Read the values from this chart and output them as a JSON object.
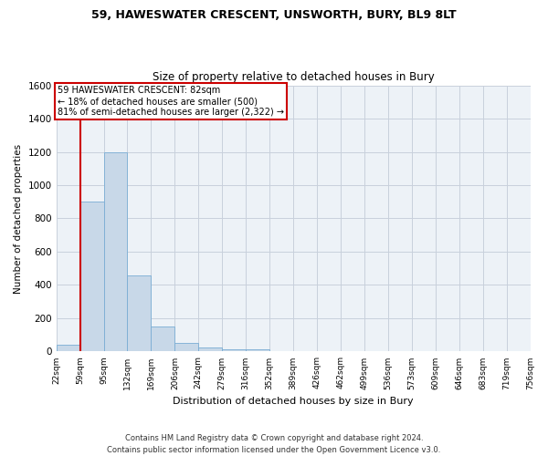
{
  "title1": "59, HAWESWATER CRESCENT, UNSWORTH, BURY, BL9 8LT",
  "title2": "Size of property relative to detached houses in Bury",
  "xlabel": "Distribution of detached houses by size in Bury",
  "ylabel": "Number of detached properties",
  "bins": [
    "22sqm",
    "59sqm",
    "95sqm",
    "132sqm",
    "169sqm",
    "206sqm",
    "242sqm",
    "279sqm",
    "316sqm",
    "352sqm",
    "389sqm",
    "426sqm",
    "462sqm",
    "499sqm",
    "536sqm",
    "573sqm",
    "609sqm",
    "646sqm",
    "683sqm",
    "719sqm",
    "756sqm"
  ],
  "values": [
    40,
    900,
    1200,
    460,
    150,
    50,
    25,
    15,
    15,
    5,
    0,
    0,
    0,
    0,
    0,
    0,
    0,
    0,
    0,
    0
  ],
  "bar_color": "#c8d8e8",
  "bar_edge_color": "#7aadd4",
  "grid_color": "#c8d0dc",
  "bg_color": "#edf2f7",
  "vline_color": "#cc0000",
  "annotation_text": "59 HAWESWATER CRESCENT: 82sqm\n← 18% of detached houses are smaller (500)\n81% of semi-detached houses are larger (2,322) →",
  "annotation_box_color": "#ffffff",
  "annotation_box_edge": "#cc0000",
  "ylim": [
    0,
    1600
  ],
  "yticks": [
    0,
    200,
    400,
    600,
    800,
    1000,
    1200,
    1400,
    1600
  ],
  "footer": "Contains HM Land Registry data © Crown copyright and database right 2024.\nContains public sector information licensed under the Open Government Licence v3.0."
}
